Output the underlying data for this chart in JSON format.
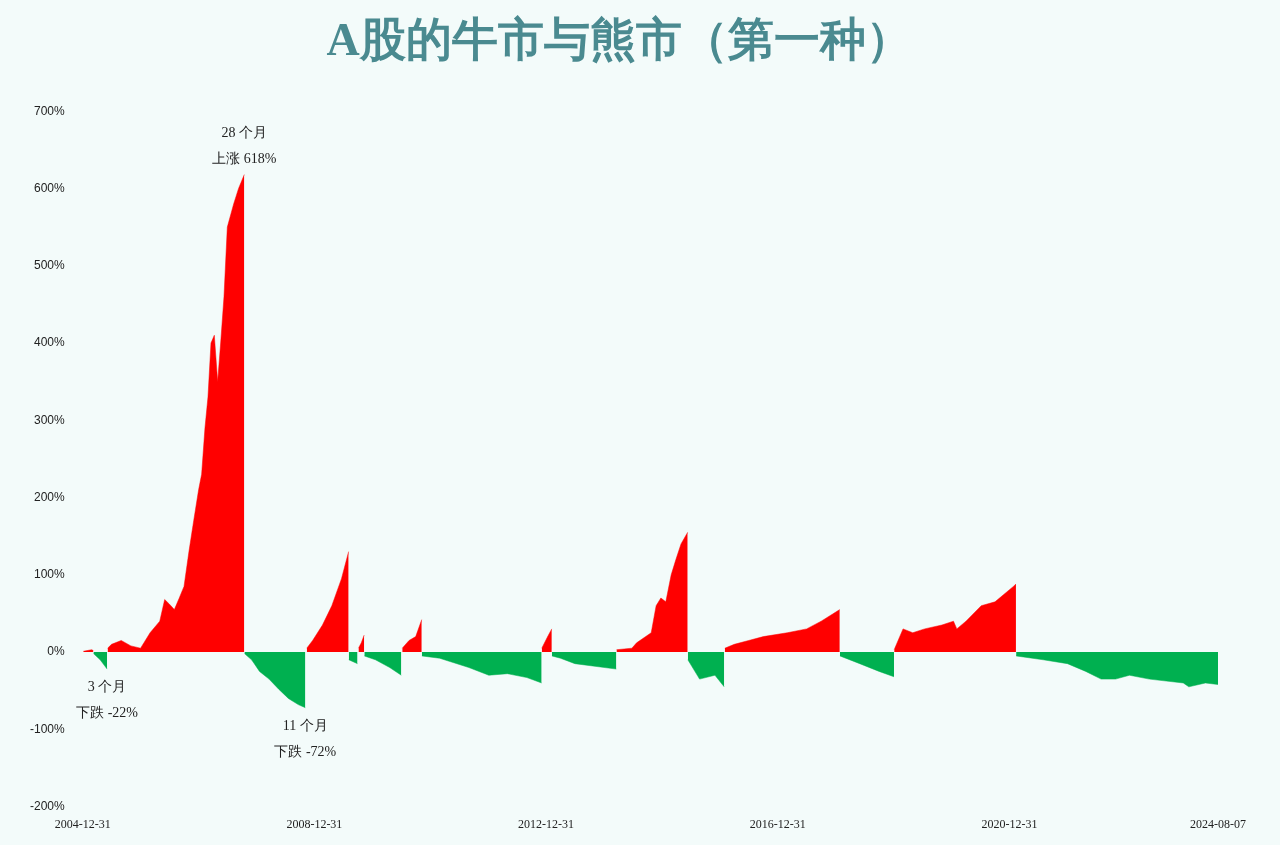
{
  "chart_data": {
    "type": "area",
    "title": "A股的牛市与熊市（第一种）",
    "xlim": [
      "2004-12-31",
      "2024-08-07"
    ],
    "xticks": [
      "2004-12-31",
      "2008-12-31",
      "2012-12-31",
      "2016-12-31",
      "2020-12-31",
      "2024-08-07"
    ],
    "ylim": [
      -200,
      700
    ],
    "yticks": [
      {
        "value": -200,
        "label": "-200%"
      },
      {
        "value": -100,
        "label": "-100%"
      },
      {
        "value": 0,
        "label": "0%"
      },
      {
        "value": 100,
        "label": "100%"
      },
      {
        "value": 200,
        "label": "200%"
      },
      {
        "value": 300,
        "label": "300%"
      },
      {
        "value": 400,
        "label": "400%"
      },
      {
        "value": 500,
        "label": "500%"
      },
      {
        "value": 600,
        "label": "600%"
      },
      {
        "value": 700,
        "label": "700%"
      }
    ],
    "grid": false,
    "legend": false,
    "series": [
      {
        "color": "#ff0000",
        "x": [
          "2005-01-04",
          "2005-02-25",
          "2005-03-08",
          "2005-04-01",
          "2005-06-06",
          "2005-07-01",
          "2005-08-31",
          "2005-10-31",
          "2005-12-31",
          "2006-03-01",
          "2006-05-01",
          "2006-06-01",
          "2006-07-01",
          "2006-08-01",
          "2006-09-01",
          "2006-10-01",
          "2006-11-01",
          "2006-12-01",
          "2007-01-01",
          "2007-01-20",
          "2007-02-10",
          "2007-03-01",
          "2007-03-20",
          "2007-04-10",
          "2007-05-01",
          "2007-05-20",
          "2007-06-10",
          "2007-07-01",
          "2007-08-10",
          "2007-09-10",
          "2007-10-16",
          "2007-11-01",
          "2008-11-13",
          "2008-12-20",
          "2009-02-20",
          "2009-04-20",
          "2009-06-20",
          "2009-08-04",
          "2009-08-10",
          "2009-10-05",
          "2009-10-23",
          "2009-11-10",
          "2009-11-20",
          "2010-07-08",
          "2010-08-20",
          "2010-10-01",
          "2010-11-08",
          "2010-11-20",
          "2012-12-04",
          "2013-01-10",
          "2013-02-05",
          "2013-02-10",
          "2014-03-20",
          "2014-06-25",
          "2014-07-25",
          "2014-10-25",
          "2014-11-25",
          "2014-12-25",
          "2015-01-25",
          "2015-02-28",
          "2015-03-30",
          "2015-05-01",
          "2015-06-12",
          "2015-06-20",
          "2016-02-01",
          "2016-04-01",
          "2016-07-01",
          "2016-10-01",
          "2017-03-01",
          "2017-07-01",
          "2017-10-01",
          "2018-01-26",
          "2018-02-10",
          "2019-01-04",
          "2019-03-01",
          "2019-05-01",
          "2019-07-15",
          "2019-11-01",
          "2020-01-13",
          "2020-02-03",
          "2020-04-01",
          "2020-07-06",
          "2020-10-01",
          "2021-01-25",
          "2021-02-10"
        ],
        "values": [
          1,
          3,
          2,
          null,
          5,
          10,
          15,
          8,
          5,
          25,
          40,
          68,
          62,
          55,
          70,
          85,
          130,
          170,
          210,
          230,
          290,
          330,
          400,
          410,
          350,
          400,
          460,
          550,
          580,
          600,
          618,
          null,
          5,
          15,
          35,
          60,
          95,
          130,
          null,
          5,
          12,
          22,
          null,
          5,
          15,
          20,
          42,
          null,
          5,
          20,
          30,
          null,
          3,
          5,
          12,
          25,
          60,
          70,
          65,
          100,
          120,
          140,
          155,
          null,
          5,
          10,
          15,
          20,
          25,
          30,
          40,
          55,
          null,
          3,
          30,
          25,
          30,
          35,
          40,
          30,
          40,
          60,
          65,
          85,
          88
        ]
      },
      {
        "color": "#00b050",
        "x": [
          "2005-03-09",
          "2005-04-20",
          "2005-06-03",
          "2005-06-05",
          "2007-10-17",
          "2007-12-01",
          "2008-01-20",
          "2008-03-20",
          "2008-05-20",
          "2008-07-20",
          "2008-09-20",
          "2008-11-04",
          "2008-11-10",
          "2009-08-05",
          "2009-09-29",
          "2009-10-01",
          "2009-11-11",
          "2010-01-20",
          "2010-04-20",
          "2010-07-02",
          "2010-07-05",
          "2010-11-09",
          "2011-03-01",
          "2011-09-01",
          "2012-01-05",
          "2012-05-01",
          "2012-09-01",
          "2012-12-03",
          "2012-12-05",
          "2013-02-06",
          "2013-04-01",
          "2013-07-01",
          "2014-03-19",
          "2014-03-21",
          "2015-06-13",
          "2015-08-26",
          "2015-12-01",
          "2016-01-28",
          "2016-01-30",
          "2018-01-27",
          "2018-06-01",
          "2018-10-01",
          "2019-01-03",
          "2019-01-05",
          "2021-02-11",
          "2021-08-01",
          "2022-01-01",
          "2022-04-26",
          "2022-08-01",
          "2022-10-31",
          "2023-01-27",
          "2023-06-01",
          "2024-01-01",
          "2024-02-05",
          "2024-05-20",
          "2024-08-07"
        ],
        "values": [
          -2,
          -10,
          -22,
          null,
          -2,
          -10,
          -25,
          -35,
          -48,
          -60,
          -68,
          -72,
          null,
          -10,
          -15,
          null,
          -5,
          -10,
          -20,
          -30,
          null,
          -5,
          -8,
          -20,
          -30,
          -28,
          -33,
          -40,
          null,
          -5,
          -8,
          -15,
          -22,
          null,
          -10,
          -35,
          -30,
          -45,
          null,
          -5,
          -15,
          -25,
          -32,
          null,
          -5,
          -10,
          -15,
          -25,
          -35,
          -35,
          -30,
          -35,
          -40,
          -45,
          -40,
          -42
        ]
      }
    ],
    "annotations": [
      {
        "text": "28 个月",
        "x": "2007-10-16",
        "y": 618
      },
      {
        "text": "上涨 618%",
        "x": "2007-10-16",
        "y": 618
      },
      {
        "text": "3 个月",
        "x": "2005-06-03",
        "y": -22
      },
      {
        "text": "下跌 -22%",
        "x": "2005-06-03",
        "y": -22
      },
      {
        "text": "11 个月",
        "x": "2008-11-04",
        "y": -72
      },
      {
        "text": "下跌 -72%",
        "x": "2008-11-04",
        "y": -72
      }
    ]
  }
}
